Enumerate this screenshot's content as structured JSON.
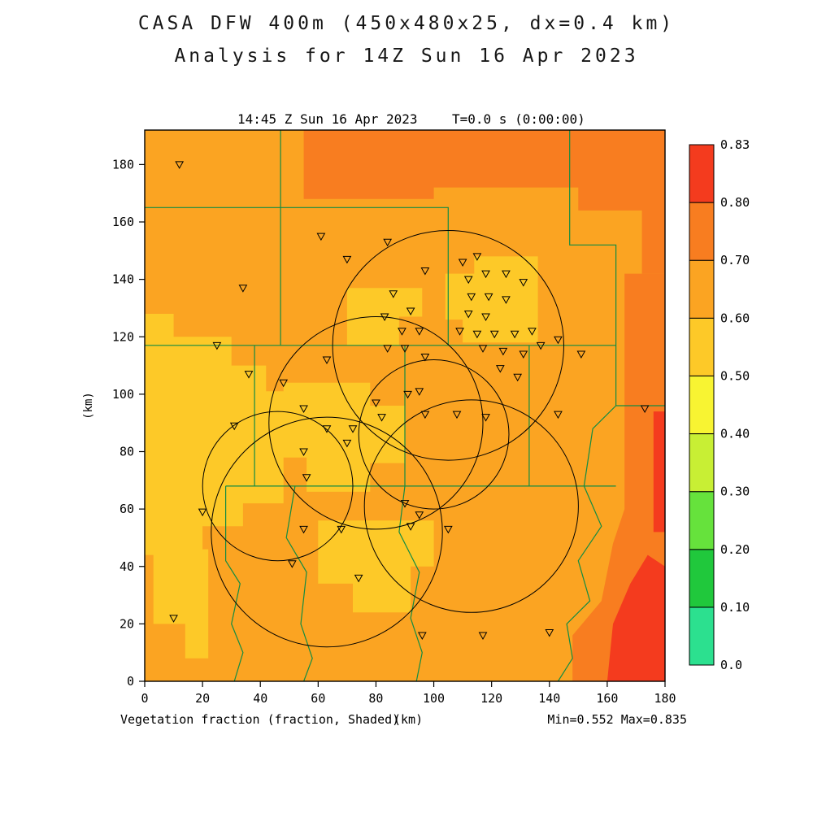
{
  "header": {
    "title_line1": "CASA DFW 400m (450x480x25, dx=0.4 km)",
    "title_line2": "Analysis for 14Z Sun 16 Apr 2023"
  },
  "plot_header": {
    "time": "14:45 Z Sun 16 Apr 2023",
    "tstep": "T=0.0 s (0:00:00)"
  },
  "axes": {
    "x_unit": "(km)",
    "y_unit": "(km)"
  },
  "footer": {
    "field_label": "Vegetation fraction (fraction, Shaded)",
    "minmax": "Min=0.552 Max=0.835"
  },
  "chart_data": {
    "type": "heatmap",
    "title": "CASA DFW 400m (450x480x25, dx=0.4 km) Analysis for 14Z Sun 16 Apr 2023",
    "field": "Vegetation fraction (fraction, Shaded)",
    "valid_time": "14:45 Z Sun 16 Apr 2023",
    "forecast_time": "T=0.0 s (0:00:00)",
    "min": 0.552,
    "max": 0.835,
    "x_range": [
      0,
      180
    ],
    "y_range": [
      0,
      192
    ],
    "x_ticks": [
      0,
      20,
      40,
      60,
      80,
      100,
      120,
      140,
      160,
      180
    ],
    "y_ticks": [
      0,
      20,
      40,
      60,
      80,
      100,
      120,
      140,
      160,
      180
    ],
    "colorbar": {
      "levels": [
        0.0,
        0.1,
        0.2,
        0.3,
        0.4,
        0.5,
        0.6,
        0.7,
        0.8,
        0.83
      ],
      "labels": [
        "0.0",
        "0.10",
        "0.20",
        "0.30",
        "0.40",
        "0.50",
        "0.60",
        "0.70",
        "0.80",
        "0.83"
      ],
      "colors": [
        "#2ce08f",
        "#20c83c",
        "#66e23c",
        "#c8ef34",
        "#f8f432",
        "#fdc928",
        "#fba422",
        "#f87d20",
        "#f43b1e"
      ]
    },
    "base_color_index": 6,
    "county_line_color": "#128c42",
    "regions": [
      {
        "color_index": 5,
        "pts": [
          [
            0,
            128
          ],
          [
            10,
            128
          ],
          [
            10,
            120
          ],
          [
            30,
            120
          ],
          [
            30,
            110
          ],
          [
            42,
            110
          ],
          [
            42,
            101
          ],
          [
            56,
            101
          ],
          [
            56,
            78
          ],
          [
            48,
            78
          ],
          [
            48,
            62
          ],
          [
            34,
            62
          ],
          [
            34,
            54
          ],
          [
            20,
            54
          ],
          [
            20,
            44
          ],
          [
            0,
            44
          ]
        ]
      },
      {
        "color_index": 5,
        "pts": [
          [
            3,
            46
          ],
          [
            22,
            46
          ],
          [
            22,
            8
          ],
          [
            14,
            8
          ],
          [
            14,
            20
          ],
          [
            3,
            20
          ]
        ]
      },
      {
        "color_index": 5,
        "pts": [
          [
            48,
            104
          ],
          [
            78,
            104
          ],
          [
            78,
            96
          ],
          [
            90,
            96
          ],
          [
            90,
            76
          ],
          [
            78,
            76
          ],
          [
            78,
            66
          ],
          [
            56,
            66
          ],
          [
            56,
            78
          ],
          [
            48,
            78
          ]
        ]
      },
      {
        "color_index": 5,
        "pts": [
          [
            70,
            137
          ],
          [
            96,
            137
          ],
          [
            96,
            127
          ],
          [
            88,
            127
          ],
          [
            88,
            117
          ],
          [
            70,
            117
          ]
        ]
      },
      {
        "color_index": 5,
        "pts": [
          [
            104,
            142
          ],
          [
            114,
            142
          ],
          [
            114,
            148
          ],
          [
            136,
            148
          ],
          [
            136,
            118
          ],
          [
            110,
            118
          ],
          [
            110,
            126
          ],
          [
            104,
            126
          ]
        ]
      },
      {
        "color_index": 5,
        "pts": [
          [
            60,
            56
          ],
          [
            100,
            56
          ],
          [
            100,
            40
          ],
          [
            92,
            40
          ],
          [
            92,
            24
          ],
          [
            72,
            24
          ],
          [
            72,
            34
          ],
          [
            60,
            34
          ]
        ]
      },
      {
        "color_index": 7,
        "pts": [
          [
            55,
            192
          ],
          [
            180,
            192
          ],
          [
            180,
            142
          ],
          [
            172,
            142
          ],
          [
            172,
            164
          ],
          [
            150,
            164
          ],
          [
            150,
            172
          ],
          [
            100,
            172
          ],
          [
            100,
            168
          ],
          [
            55,
            168
          ]
        ]
      },
      {
        "color_index": 7,
        "pts": [
          [
            166,
            142
          ],
          [
            180,
            142
          ],
          [
            180,
            0
          ],
          [
            148,
            0
          ],
          [
            148,
            16
          ],
          [
            158,
            28
          ],
          [
            162,
            48
          ],
          [
            166,
            60
          ]
        ]
      },
      {
        "color_index": 8,
        "pts": [
          [
            160,
            0
          ],
          [
            180,
            0
          ],
          [
            180,
            40
          ],
          [
            174,
            44
          ],
          [
            168,
            34
          ],
          [
            162,
            20
          ]
        ]
      },
      {
        "color_index": 8,
        "pts": [
          [
            176,
            52
          ],
          [
            180,
            52
          ],
          [
            180,
            94
          ],
          [
            176,
            94
          ]
        ]
      }
    ],
    "county_lines": [
      [
        [
          0,
          165
        ],
        [
          105,
          165
        ],
        [
          105,
          117
        ]
      ],
      [
        [
          47,
          192
        ],
        [
          47,
          117
        ]
      ],
      [
        [
          0,
          117
        ],
        [
          163,
          117
        ]
      ],
      [
        [
          90,
          117
        ],
        [
          90,
          68
        ]
      ],
      [
        [
          133,
          117
        ],
        [
          133,
          68
        ]
      ],
      [
        [
          28,
          68
        ],
        [
          163,
          68
        ]
      ],
      [
        [
          38,
          117
        ],
        [
          38,
          68
        ]
      ],
      [
        [
          147,
          192
        ],
        [
          147,
          152
        ],
        [
          163,
          152
        ],
        [
          163,
          96
        ]
      ],
      [
        [
          163,
          96
        ],
        [
          180,
          96
        ]
      ],
      [
        [
          163,
          96
        ],
        [
          155,
          88
        ],
        [
          152,
          68
        ]
      ],
      [
        [
          28,
          68
        ],
        [
          28,
          42
        ],
        [
          33,
          34
        ],
        [
          30,
          20
        ],
        [
          34,
          10
        ],
        [
          31,
          0
        ]
      ],
      [
        [
          52,
          68
        ],
        [
          49,
          50
        ],
        [
          56,
          38
        ],
        [
          54,
          20
        ],
        [
          58,
          8
        ],
        [
          55,
          0
        ]
      ],
      [
        [
          90,
          68
        ],
        [
          88,
          52
        ],
        [
          95,
          38
        ],
        [
          92,
          22
        ],
        [
          96,
          10
        ],
        [
          94,
          0
        ]
      ],
      [
        [
          152,
          68
        ],
        [
          158,
          54
        ],
        [
          150,
          42
        ],
        [
          154,
          28
        ],
        [
          146,
          20
        ],
        [
          148,
          8
        ],
        [
          143,
          0
        ]
      ]
    ],
    "range_rings": [
      {
        "cx": 105,
        "cy": 117,
        "r": 40
      },
      {
        "cx": 80,
        "cy": 90,
        "r": 37
      },
      {
        "cx": 100,
        "cy": 86,
        "r": 26
      },
      {
        "cx": 63,
        "cy": 52,
        "r": 40
      },
      {
        "cx": 113,
        "cy": 61,
        "r": 37
      },
      {
        "cx": 46,
        "cy": 68,
        "r": 26
      }
    ],
    "stations": [
      [
        12,
        180
      ],
      [
        34,
        137
      ],
      [
        25,
        117
      ],
      [
        61,
        155
      ],
      [
        70,
        147
      ],
      [
        84,
        153
      ],
      [
        97,
        143
      ],
      [
        86,
        135
      ],
      [
        92,
        129
      ],
      [
        83,
        127
      ],
      [
        89,
        122
      ],
      [
        95,
        122
      ],
      [
        90,
        116
      ],
      [
        97,
        113
      ],
      [
        84,
        116
      ],
      [
        110,
        146
      ],
      [
        115,
        148
      ],
      [
        112,
        140
      ],
      [
        118,
        142
      ],
      [
        125,
        142
      ],
      [
        131,
        139
      ],
      [
        113,
        134
      ],
      [
        119,
        134
      ],
      [
        125,
        133
      ],
      [
        112,
        128
      ],
      [
        118,
        127
      ],
      [
        109,
        122
      ],
      [
        115,
        121
      ],
      [
        121,
        121
      ],
      [
        128,
        121
      ],
      [
        134,
        122
      ],
      [
        117,
        116
      ],
      [
        124,
        115
      ],
      [
        131,
        114
      ],
      [
        137,
        117
      ],
      [
        123,
        109
      ],
      [
        129,
        106
      ],
      [
        143,
        119
      ],
      [
        151,
        114
      ],
      [
        173,
        95
      ],
      [
        143,
        93
      ],
      [
        63,
        112
      ],
      [
        48,
        104
      ],
      [
        36,
        107
      ],
      [
        55,
        95
      ],
      [
        63,
        88
      ],
      [
        72,
        88
      ],
      [
        80,
        97
      ],
      [
        91,
        100
      ],
      [
        95,
        101
      ],
      [
        82,
        92
      ],
      [
        97,
        93
      ],
      [
        108,
        93
      ],
      [
        118,
        92
      ],
      [
        70,
        83
      ],
      [
        55,
        80
      ],
      [
        31,
        89
      ],
      [
        56,
        71
      ],
      [
        90,
        62
      ],
      [
        95,
        58
      ],
      [
        92,
        54
      ],
      [
        105,
        53
      ],
      [
        55,
        53
      ],
      [
        68,
        53
      ],
      [
        51,
        41
      ],
      [
        74,
        36
      ],
      [
        20,
        59
      ],
      [
        10,
        22
      ],
      [
        117,
        16
      ],
      [
        140,
        17
      ],
      [
        96,
        16
      ]
    ]
  }
}
